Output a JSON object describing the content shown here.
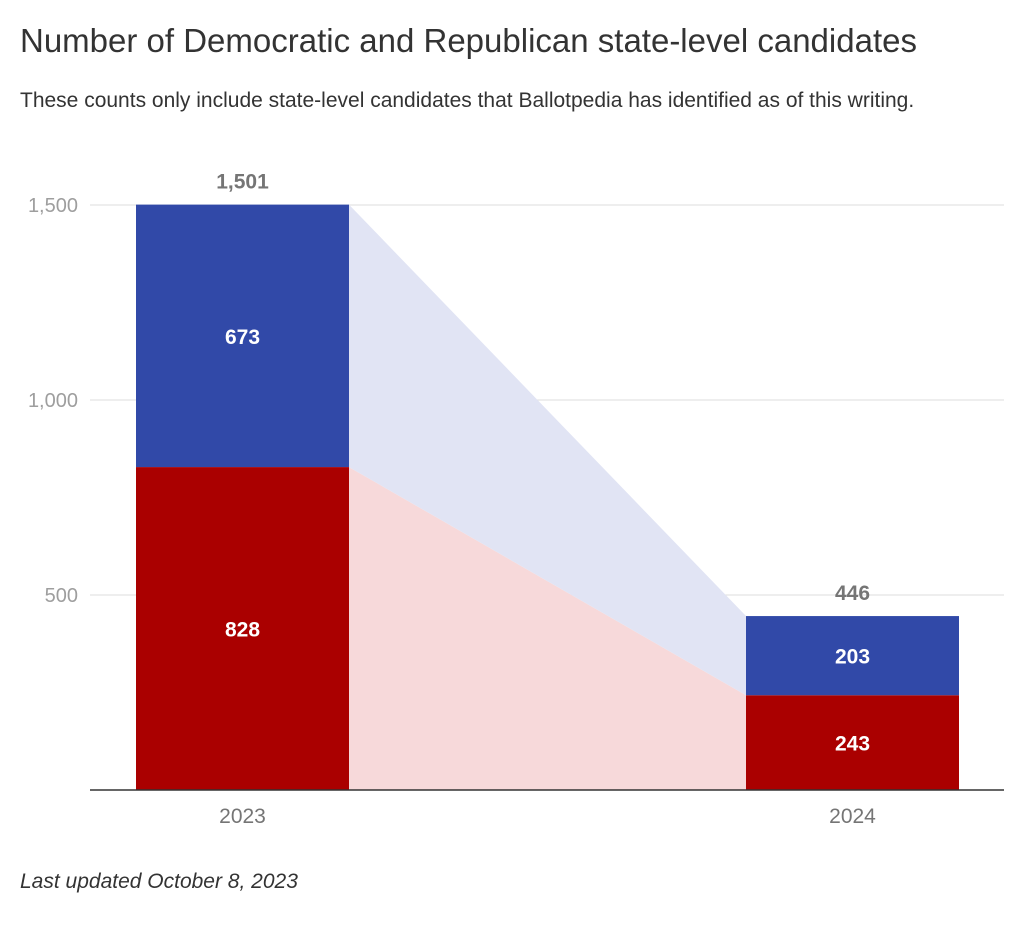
{
  "chart_data": {
    "type": "bar",
    "stacked": true,
    "title": "Number of Democratic and Republican state-level candidates",
    "subtitle": "These counts only include state-level candidates that Ballotpedia has identified as of this writing.",
    "categories": [
      "2023",
      "2024"
    ],
    "series": [
      {
        "values": [
          828,
          243
        ],
        "color": "#aa0000",
        "band_color": "#f7d9da"
      },
      {
        "values": [
          673,
          203
        ],
        "color": "#3149a8",
        "band_color": "#e1e4f4"
      }
    ],
    "totals": [
      "1,501",
      "446"
    ],
    "segment_labels": [
      [
        "828",
        "243"
      ],
      [
        "673",
        "203"
      ]
    ],
    "yticks": [
      {
        "value": 500,
        "label": "500"
      },
      {
        "value": 1000,
        "label": "1,000"
      },
      {
        "value": 1500,
        "label": "1,500"
      }
    ],
    "ylim": [
      0,
      1500
    ],
    "grid": true,
    "legend": "none",
    "footer": "Last updated October 8, 2023"
  }
}
